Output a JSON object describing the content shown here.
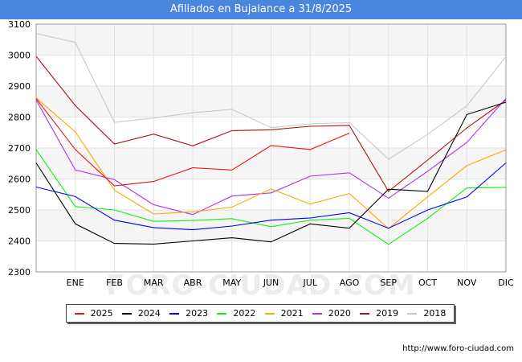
{
  "header": {
    "title": "Afiliados en Bujalance a 31/8/2025"
  },
  "watermark": "FORO-CIUDAD.COM",
  "footer": {
    "source": "http://www.foro-ciudad.com"
  },
  "chart_data": {
    "type": "line",
    "title": "Afiliados en Bujalance a 31/8/2025",
    "xlabel": "",
    "ylabel": "",
    "categories": [
      "",
      "ENE",
      "FEB",
      "MAR",
      "ABR",
      "MAY",
      "JUN",
      "JUL",
      "AGO",
      "SEP",
      "OCT",
      "NOV",
      "DIC"
    ],
    "ylim": [
      2300,
      3100
    ],
    "yticks": [
      2300,
      2400,
      2500,
      2600,
      2700,
      2800,
      2900,
      3000,
      3100
    ],
    "grid": true,
    "legend_position": "bottom",
    "series": [
      {
        "name": "2025",
        "color": "#ee1111",
        "values": [
          2860,
          2695,
          2578,
          2592,
          2636,
          2629,
          2708,
          2695,
          2748,
          null,
          null,
          null,
          null
        ]
      },
      {
        "name": "2024",
        "color": "#000000",
        "values": [
          2652,
          2455,
          2392,
          2390,
          2400,
          2410,
          2397,
          2455,
          2441,
          2567,
          2560,
          2808,
          2848
        ]
      },
      {
        "name": "2023",
        "color": "#0000ee",
        "values": [
          2574,
          2543,
          2467,
          2443,
          2436,
          2448,
          2467,
          2474,
          2491,
          2441,
          2500,
          2542,
          2652
        ]
      },
      {
        "name": "2022",
        "color": "#11ee11",
        "values": [
          2695,
          2511,
          2500,
          2463,
          2466,
          2472,
          2446,
          2467,
          2473,
          2389,
          2473,
          2571,
          2573
        ]
      },
      {
        "name": "2021",
        "color": "#ffa500",
        "values": [
          2862,
          2752,
          2564,
          2487,
          2494,
          2509,
          2568,
          2519,
          2553,
          2440,
          2542,
          2643,
          2694
        ]
      },
      {
        "name": "2020",
        "color": "#aa33ee",
        "values": [
          2855,
          2629,
          2598,
          2517,
          2485,
          2545,
          2555,
          2609,
          2620,
          2538,
          2625,
          2718,
          2860
        ]
      },
      {
        "name": "2019",
        "color": "#aa1111",
        "values": [
          2996,
          2837,
          2713,
          2745,
          2707,
          2756,
          2759,
          2770,
          2773,
          2560,
          2661,
          2765,
          2855
        ]
      },
      {
        "name": "2018",
        "color": "#c8c8c8",
        "values": [
          3070,
          3041,
          2783,
          2797,
          2814,
          2825,
          2766,
          2778,
          2782,
          2664,
          2744,
          2836,
          2995
        ]
      }
    ]
  }
}
